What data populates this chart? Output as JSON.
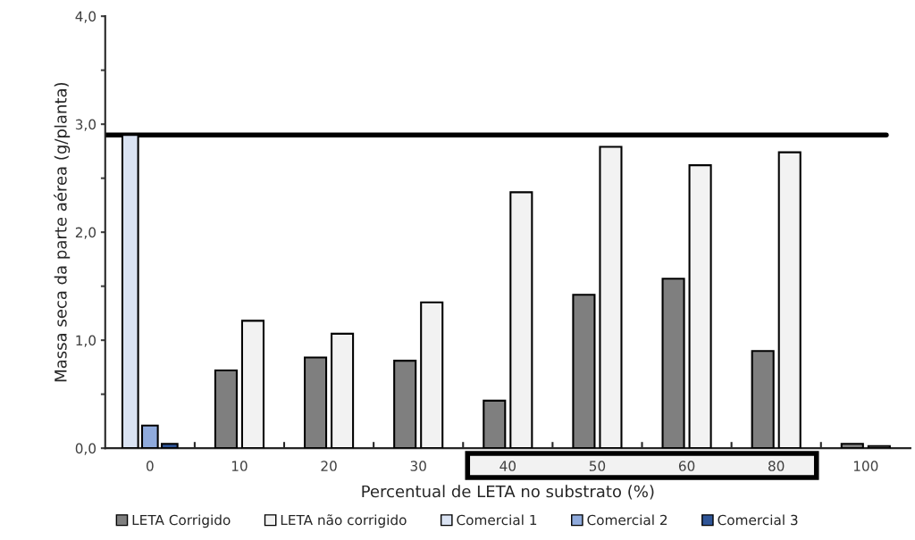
{
  "chart_data": {
    "type": "bar",
    "xlabel": "Percentual de LETA no substrato (%)",
    "ylabel": "Massa seca da parte aérea (g/planta)",
    "categories": [
      "0",
      "10",
      "20",
      "30",
      "40",
      "50",
      "60",
      "80",
      "100"
    ],
    "series": [
      {
        "name": "LETA Corrigido",
        "color": "#7f7f7f",
        "values": [
          null,
          0.72,
          0.84,
          0.81,
          0.44,
          1.42,
          1.57,
          0.9,
          0.04
        ]
      },
      {
        "name": "LETA não corrigido",
        "color": "#f2f2f2",
        "values": [
          null,
          1.18,
          1.06,
          1.35,
          2.37,
          2.79,
          2.62,
          2.74,
          0.02
        ]
      },
      {
        "name": "Comercial 1",
        "color": "#dae3f3",
        "values": [
          2.9,
          null,
          null,
          null,
          null,
          null,
          null,
          null,
          null
        ]
      },
      {
        "name": "Comercial 2",
        "color": "#8faadc",
        "values": [
          0.21,
          null,
          null,
          null,
          null,
          null,
          null,
          null,
          null
        ]
      },
      {
        "name": "Comercial 3",
        "color": "#2f5597",
        "values": [
          0.04,
          null,
          null,
          null,
          null,
          null,
          null,
          null,
          null
        ]
      }
    ],
    "ylim": [
      0,
      4
    ],
    "yticks": [
      {
        "value": 0,
        "label": "0,0"
      },
      {
        "value": 0.5,
        "label": null
      },
      {
        "value": 1,
        "label": "1,0"
      },
      {
        "value": 1.5,
        "label": null
      },
      {
        "value": 2,
        "label": "2,0"
      },
      {
        "value": 2.5,
        "label": null
      },
      {
        "value": 3,
        "label": "3,0"
      },
      {
        "value": 3.5,
        "label": null
      },
      {
        "value": 4,
        "label": "4,0"
      }
    ],
    "ref_lines": [
      {
        "axis": "y",
        "value": 2.9,
        "color": "#000000"
      }
    ],
    "grid": false,
    "legend": "bottom"
  }
}
